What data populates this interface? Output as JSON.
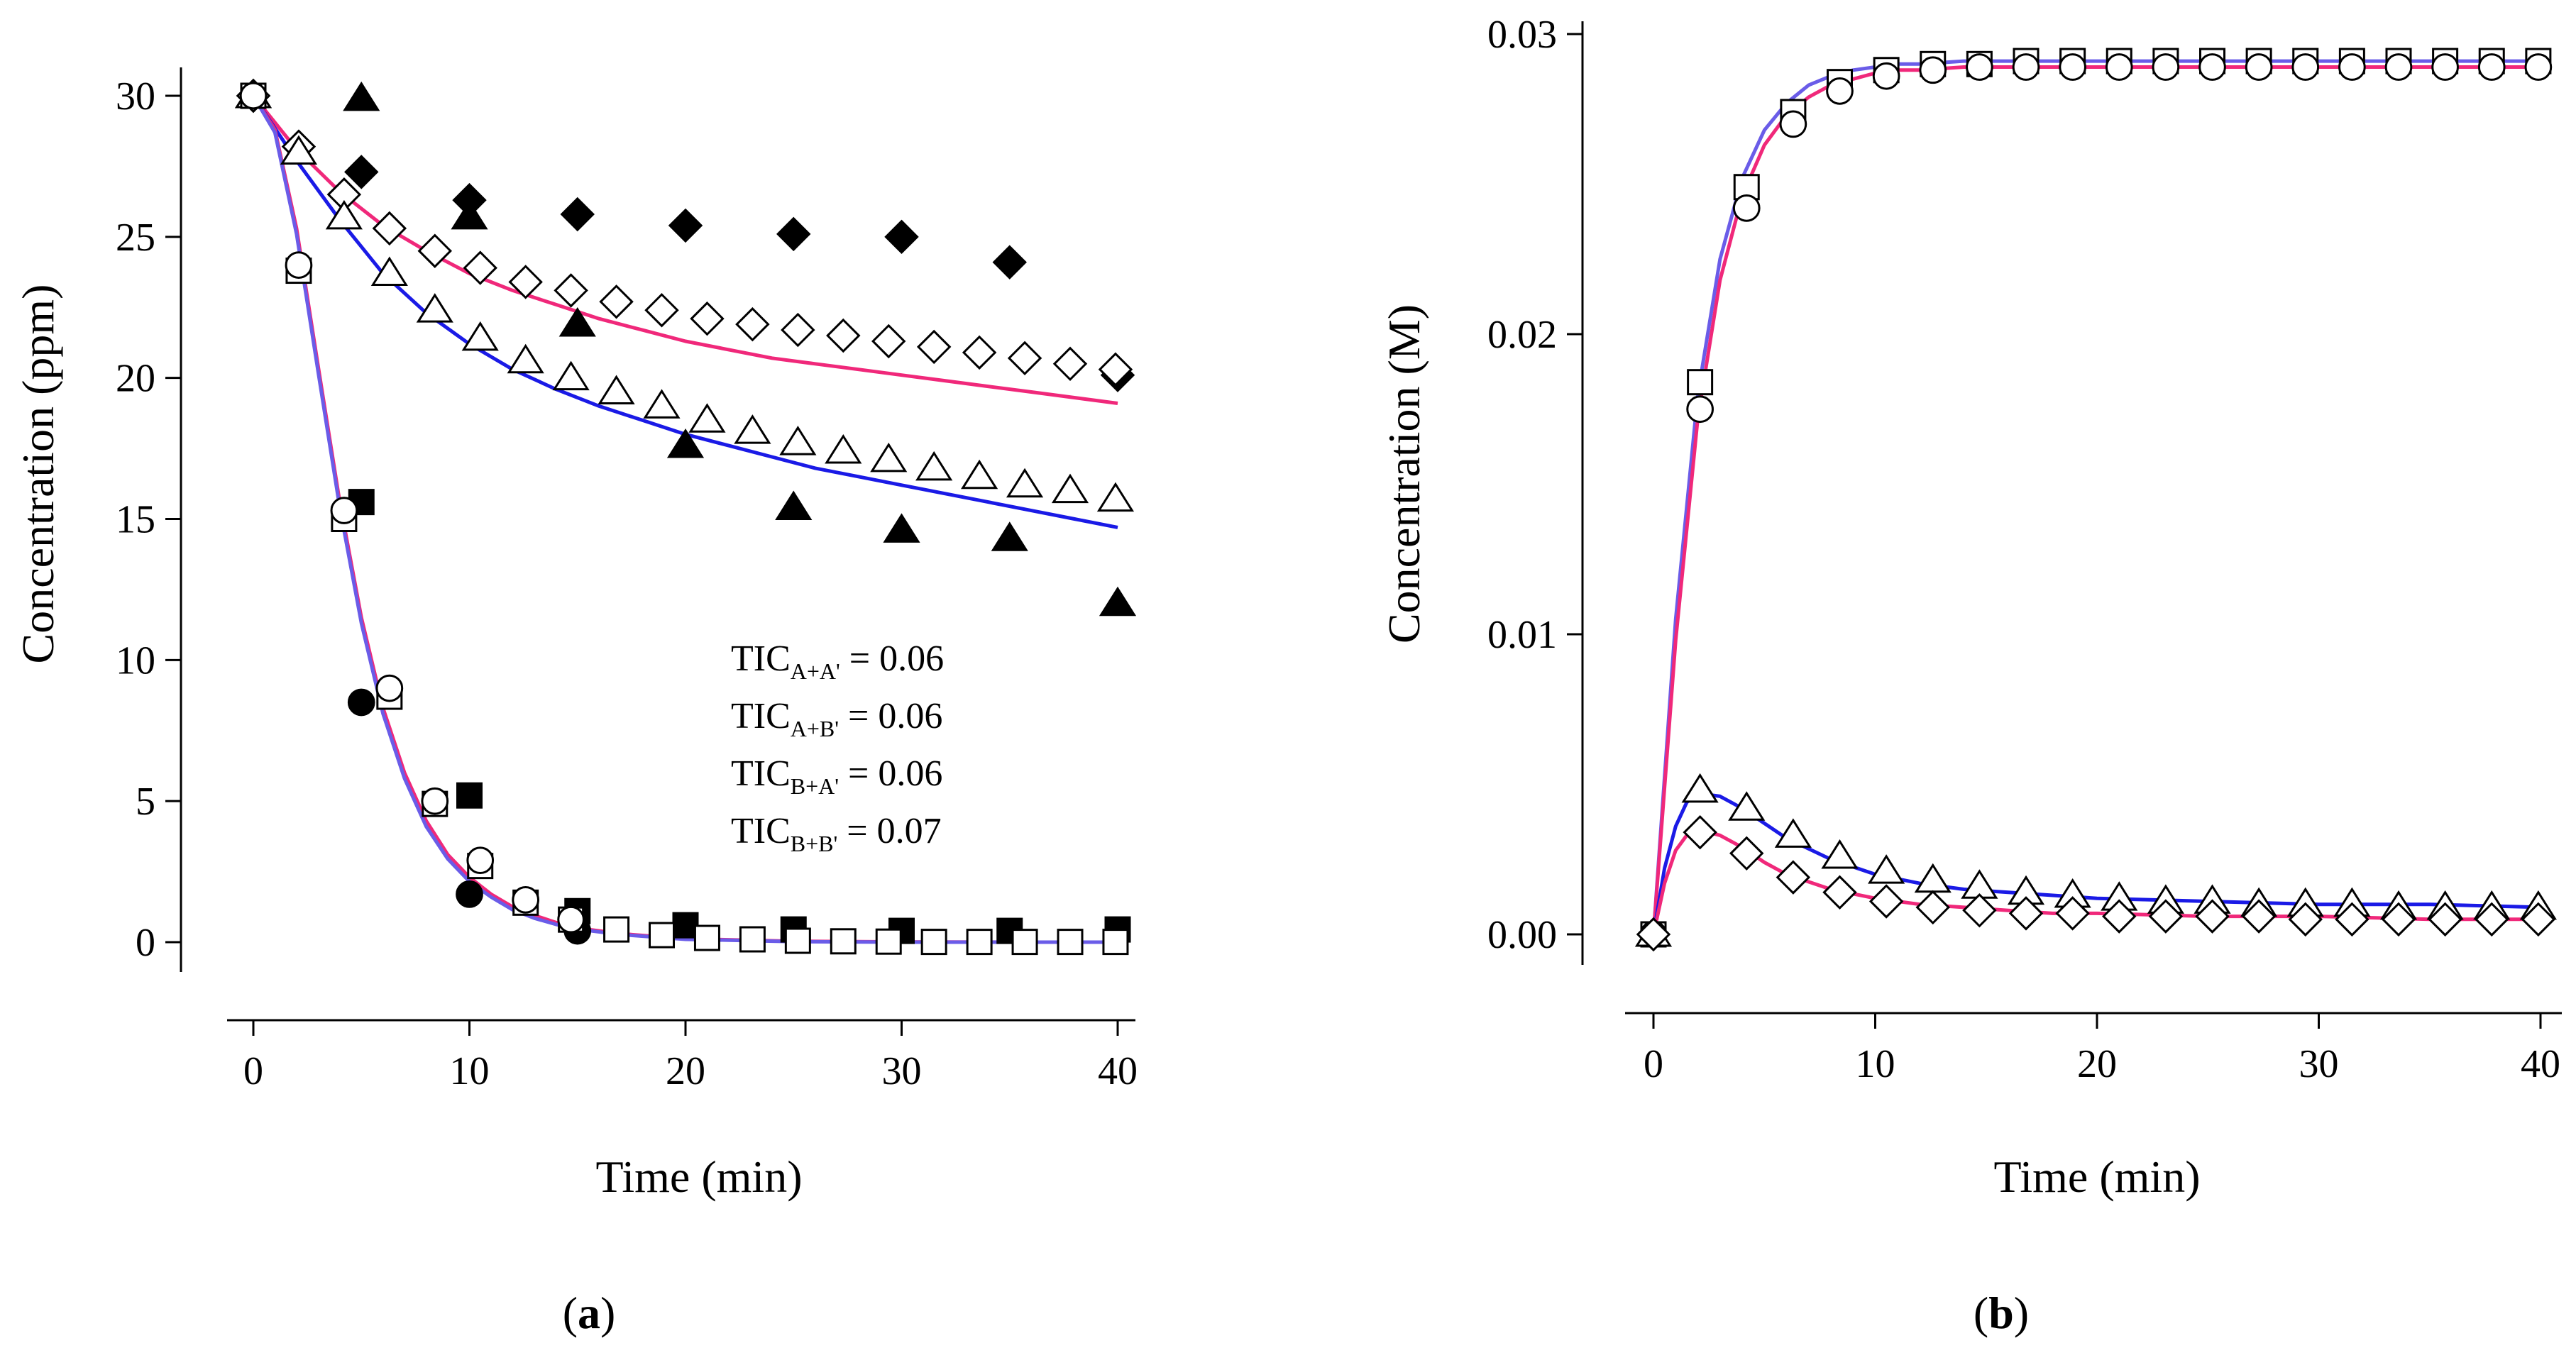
{
  "chart_data": [
    {
      "type": "scatter",
      "panel_label": "a",
      "xlabel": "Time (min)",
      "ylabel": "Concentration (ppm)",
      "xlim": [
        0,
        40
      ],
      "ylim": [
        0,
        30
      ],
      "xticks": [
        0,
        10,
        20,
        30,
        40
      ],
      "yticks": [
        0,
        5,
        10,
        15,
        20,
        25,
        30
      ],
      "annotations": [
        {
          "base": "TIC",
          "sub": "A+A'",
          "suffix": " = 0.06"
        },
        {
          "base": "TIC",
          "sub": "A+B'",
          "suffix": " = 0.06"
        },
        {
          "base": "TIC",
          "sub": "B+A'",
          "suffix": " = 0.06"
        },
        {
          "base": "TIC",
          "sub": "B+B'",
          "suffix": " = 0.07"
        }
      ],
      "series": [
        {
          "name": "filled-diamond",
          "marker": "diamond",
          "filled": true,
          "x": [
            0,
            5,
            10,
            15,
            20,
            25,
            30,
            35,
            40
          ],
          "y": [
            30,
            27.3,
            26.3,
            25.8,
            25.4,
            25.1,
            25.0,
            24.1,
            20.1
          ]
        },
        {
          "name": "filled-triangle",
          "marker": "triangle",
          "filled": true,
          "x": [
            0,
            5,
            10,
            15,
            20,
            25,
            30,
            35,
            40
          ],
          "y": [
            30,
            29.9,
            25.7,
            21.9,
            17.6,
            15.4,
            14.6,
            14.3,
            12.0
          ]
        },
        {
          "name": "filled-square",
          "marker": "square",
          "filled": true,
          "x": [
            0,
            5,
            10,
            15,
            20,
            25,
            30,
            35,
            40
          ],
          "y": [
            30,
            15.6,
            5.2,
            1.1,
            0.6,
            0.45,
            0.4,
            0.4,
            0.45
          ]
        },
        {
          "name": "filled-circle",
          "marker": "circle",
          "filled": true,
          "x": [
            0,
            5,
            10,
            15
          ],
          "y": [
            30,
            8.5,
            1.7,
            0.4
          ]
        },
        {
          "name": "open-diamond",
          "marker": "diamond",
          "filled": false,
          "x": [
            0,
            2.1,
            4.2,
            6.3,
            8.4,
            10.5,
            12.6,
            14.7,
            16.8,
            18.9,
            21,
            23.1,
            25.2,
            27.3,
            29.4,
            31.5,
            33.6,
            35.7,
            37.8,
            39.9
          ],
          "y": [
            30,
            28.2,
            26.5,
            25.3,
            24.5,
            23.9,
            23.4,
            23.1,
            22.7,
            22.4,
            22.1,
            21.9,
            21.7,
            21.5,
            21.3,
            21.1,
            20.9,
            20.7,
            20.5,
            20.3
          ]
        },
        {
          "name": "open-triangle",
          "marker": "triangle",
          "filled": false,
          "x": [
            0,
            2.1,
            4.2,
            6.3,
            8.4,
            10.5,
            12.6,
            14.7,
            16.8,
            18.9,
            21,
            23.1,
            25.2,
            27.3,
            29.4,
            31.5,
            33.6,
            35.7,
            37.8,
            39.9
          ],
          "y": [
            30,
            28.0,
            25.7,
            23.7,
            22.4,
            21.4,
            20.6,
            20.0,
            19.5,
            19.0,
            18.5,
            18.1,
            17.7,
            17.4,
            17.1,
            16.8,
            16.5,
            16.2,
            16.0,
            15.7
          ]
        },
        {
          "name": "open-square",
          "marker": "square",
          "filled": false,
          "x": [
            0,
            2.1,
            4.2,
            6.3,
            8.4,
            10.5,
            12.6,
            14.7,
            16.8,
            18.9,
            21,
            23.1,
            25.2,
            27.3,
            29.4,
            31.5,
            33.6,
            35.7,
            37.8,
            39.9
          ],
          "y": [
            30,
            23.8,
            15.0,
            8.7,
            4.9,
            2.7,
            1.4,
            0.8,
            0.45,
            0.25,
            0.15,
            0.1,
            0.05,
            0.03,
            0.02,
            0.01,
            0.01,
            0.01,
            0.01,
            0.01
          ]
        },
        {
          "name": "open-circle",
          "marker": "circle",
          "filled": false,
          "x": [
            0,
            2.1,
            4.2,
            6.3,
            8.4,
            10.5,
            12.6,
            14.7
          ],
          "y": [
            30,
            24.0,
            15.3,
            9.0,
            5.0,
            2.9,
            1.5,
            0.8
          ]
        }
      ],
      "fit_lines": [
        {
          "name": "pink-upper",
          "color": "#f0287a",
          "x": [
            0,
            2,
            4,
            6,
            8,
            10,
            12,
            14,
            16,
            18,
            20,
            22,
            24,
            26,
            28,
            30,
            32,
            34,
            36,
            38,
            40
          ],
          "y": [
            30,
            28.1,
            26.6,
            25.4,
            24.5,
            23.7,
            23.1,
            22.6,
            22.1,
            21.7,
            21.3,
            21.0,
            20.7,
            20.5,
            20.3,
            20.1,
            19.9,
            19.7,
            19.5,
            19.3,
            19.1
          ]
        },
        {
          "name": "blue-middle",
          "color": "#1a1ae6",
          "x": [
            0,
            2,
            4,
            6,
            8,
            10,
            12,
            14,
            16,
            18,
            20,
            22,
            24,
            26,
            28,
            30,
            32,
            34,
            36,
            38,
            40
          ],
          "y": [
            30,
            27.7,
            25.6,
            23.7,
            22.3,
            21.2,
            20.3,
            19.6,
            19.0,
            18.5,
            18.0,
            17.6,
            17.2,
            16.8,
            16.5,
            16.2,
            15.9,
            15.6,
            15.3,
            15.0,
            14.7
          ]
        },
        {
          "name": "pink-lower",
          "color": "#f0287a",
          "x": [
            0,
            1,
            2,
            3,
            4,
            5,
            6,
            7,
            8,
            9,
            10,
            11,
            12,
            13,
            14,
            15,
            17,
            20,
            25,
            30,
            35,
            40
          ],
          "y": [
            30,
            28.8,
            25.3,
            20.4,
            15.6,
            11.5,
            8.3,
            6.0,
            4.3,
            3.1,
            2.3,
            1.7,
            1.25,
            0.95,
            0.7,
            0.5,
            0.3,
            0.12,
            0.03,
            0.01,
            0.0,
            0.0
          ]
        },
        {
          "name": "blue-lower",
          "color": "#6a5ce8",
          "x": [
            0,
            1,
            2,
            3,
            4,
            5,
            6,
            7,
            8,
            9,
            10,
            11,
            12,
            13,
            14,
            15,
            17,
            20,
            25,
            30,
            35,
            40
          ],
          "y": [
            30,
            28.7,
            25.1,
            20.2,
            15.4,
            11.3,
            8.1,
            5.8,
            4.1,
            2.95,
            2.15,
            1.6,
            1.15,
            0.85,
            0.63,
            0.46,
            0.27,
            0.1,
            0.02,
            0.0,
            0.0,
            0.0
          ]
        }
      ]
    },
    {
      "type": "scatter",
      "panel_label": "b",
      "xlabel": "Time (min)",
      "ylabel": "Concentration (M)",
      "xlim": [
        0,
        40
      ],
      "ylim": [
        0,
        0.03
      ],
      "xticks": [
        0,
        10,
        20,
        30,
        40
      ],
      "yticks": [
        0,
        0.01,
        0.02,
        0.03
      ],
      "ytick_labels": [
        "0.00",
        "0.01",
        "0.02",
        "0.03"
      ],
      "series": [
        {
          "name": "open-square",
          "marker": "square",
          "filled": false,
          "x": [
            0,
            2.1,
            4.2,
            6.3,
            8.4,
            10.5,
            12.6,
            14.7,
            16.8,
            18.9,
            21,
            23.1,
            25.2,
            27.3,
            29.4,
            31.5,
            33.6,
            35.7,
            37.8,
            39.9
          ],
          "y": [
            0,
            0.0184,
            0.0249,
            0.0274,
            0.0284,
            0.0288,
            0.029,
            0.029,
            0.0291,
            0.0291,
            0.0291,
            0.0291,
            0.0291,
            0.0291,
            0.0291,
            0.0291,
            0.0291,
            0.0291,
            0.0291,
            0.0291
          ]
        },
        {
          "name": "open-circle",
          "marker": "circle",
          "filled": false,
          "x": [
            0,
            2.1,
            4.2,
            6.3,
            8.4,
            10.5,
            12.6,
            14.7,
            16.8,
            18.9,
            21,
            23.1,
            25.2,
            27.3,
            29.4,
            31.5,
            33.6,
            35.7,
            37.8,
            39.9
          ],
          "y": [
            0,
            0.0175,
            0.0242,
            0.027,
            0.0281,
            0.0286,
            0.0288,
            0.0289,
            0.0289,
            0.0289,
            0.0289,
            0.0289,
            0.0289,
            0.0289,
            0.0289,
            0.0289,
            0.0289,
            0.0289,
            0.0289,
            0.0289
          ]
        },
        {
          "name": "open-triangle",
          "marker": "triangle",
          "filled": false,
          "x": [
            0,
            2.1,
            4.2,
            6.3,
            8.4,
            10.5,
            12.6,
            14.7,
            16.8,
            18.9,
            21,
            23.1,
            25.2,
            27.3,
            29.4,
            31.5,
            33.6,
            35.7,
            37.8,
            39.9
          ],
          "y": [
            0,
            0.0048,
            0.0042,
            0.0033,
            0.0026,
            0.0021,
            0.0018,
            0.0016,
            0.0014,
            0.0013,
            0.0012,
            0.0011,
            0.0011,
            0.001,
            0.001,
            0.001,
            0.0009,
            0.0009,
            0.0009,
            0.0009
          ]
        },
        {
          "name": "open-diamond",
          "marker": "diamond",
          "filled": false,
          "x": [
            0,
            2.1,
            4.2,
            6.3,
            8.4,
            10.5,
            12.6,
            14.7,
            16.8,
            18.9,
            21,
            23.1,
            25.2,
            27.3,
            29.4,
            31.5,
            33.6,
            35.7,
            37.8,
            39.9
          ],
          "y": [
            0,
            0.0034,
            0.0027,
            0.0019,
            0.0014,
            0.0011,
            0.0009,
            0.0008,
            0.0007,
            0.0007,
            0.0006,
            0.0006,
            0.0006,
            0.0006,
            0.0005,
            0.0005,
            0.0005,
            0.0005,
            0.0005,
            0.0005
          ]
        }
      ],
      "fit_lines": [
        {
          "name": "blue-upper",
          "color": "#6a5ce8",
          "x": [
            0,
            1,
            2,
            3,
            4,
            5,
            6,
            7,
            8,
            9,
            10,
            11,
            12,
            14,
            16,
            20,
            25,
            30,
            35,
            40
          ],
          "y": [
            0,
            0.0105,
            0.018,
            0.0225,
            0.0252,
            0.0268,
            0.0277,
            0.0283,
            0.0286,
            0.0288,
            0.0289,
            0.029,
            0.029,
            0.0291,
            0.0291,
            0.0291,
            0.0291,
            0.0291,
            0.0291,
            0.0291
          ]
        },
        {
          "name": "pink-upper",
          "color": "#f0287a",
          "x": [
            0,
            1,
            2,
            3,
            4,
            5,
            6,
            7,
            8,
            9,
            10,
            11,
            12,
            14,
            16,
            20,
            25,
            30,
            35,
            40
          ],
          "y": [
            0,
            0.0098,
            0.0172,
            0.0218,
            0.0246,
            0.0263,
            0.0273,
            0.0279,
            0.0283,
            0.0285,
            0.0287,
            0.0288,
            0.0288,
            0.0289,
            0.0289,
            0.0289,
            0.0289,
            0.0289,
            0.0289,
            0.0289
          ]
        },
        {
          "name": "blue-lower",
          "color": "#1a1ae6",
          "x": [
            0,
            0.5,
            1,
            1.5,
            2,
            3,
            4,
            5,
            6,
            8,
            10,
            12,
            14,
            16,
            18,
            20,
            25,
            30,
            35,
            40
          ],
          "y": [
            0,
            0.0022,
            0.0036,
            0.0044,
            0.0047,
            0.0046,
            0.0042,
            0.0037,
            0.0032,
            0.0025,
            0.002,
            0.0017,
            0.0015,
            0.0014,
            0.0013,
            0.0012,
            0.0011,
            0.001,
            0.001,
            0.0009
          ]
        },
        {
          "name": "pink-lower",
          "color": "#f0287a",
          "x": [
            0,
            0.5,
            1,
            1.5,
            2,
            3,
            4,
            5,
            6,
            8,
            10,
            12,
            14,
            16,
            18,
            20,
            25,
            30,
            35,
            40
          ],
          "y": [
            0,
            0.0017,
            0.0028,
            0.0033,
            0.0035,
            0.0033,
            0.0029,
            0.0024,
            0.002,
            0.0015,
            0.0012,
            0.001,
            0.0009,
            0.0008,
            0.0007,
            0.0007,
            0.0006,
            0.0006,
            0.0005,
            0.0005
          ]
        }
      ]
    }
  ]
}
